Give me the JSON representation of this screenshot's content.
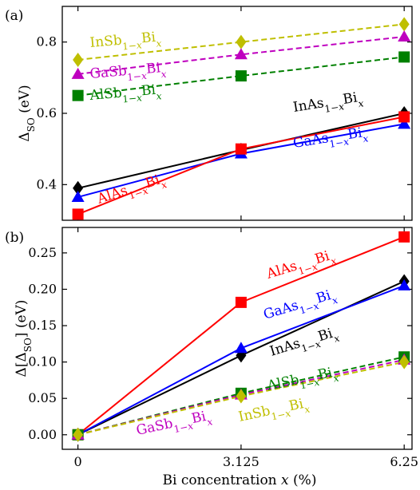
{
  "chart_data": [
    {
      "type": "line",
      "panel_label": "(a)",
      "ylabel": "Δ_SO (eV)",
      "ylim": [
        0.3,
        0.9
      ],
      "yticks": [
        0.4,
        0.6,
        0.8
      ],
      "ytick_labels": [
        "0.4",
        "0.6",
        "0.8"
      ],
      "xlim": [
        -0.3,
        6.4
      ],
      "xticks": [
        0,
        3.125,
        6.25
      ],
      "grid": false,
      "series": [
        {
          "name": "InSb1−xBix",
          "color": "#bfbf00",
          "marker": "diamond",
          "dashed": true,
          "x": [
            0,
            3.125,
            6.25
          ],
          "y": [
            0.75,
            0.8,
            0.85
          ]
        },
        {
          "name": "GaSb1−xBix",
          "color": "#bf00bf",
          "marker": "triangle",
          "dashed": true,
          "x": [
            0,
            3.125,
            6.25
          ],
          "y": [
            0.71,
            0.765,
            0.815
          ]
        },
        {
          "name": "AlSb1−xBix",
          "color": "#008000",
          "marker": "square",
          "dashed": true,
          "x": [
            0,
            3.125,
            6.25
          ],
          "y": [
            0.65,
            0.705,
            0.758
          ]
        },
        {
          "name": "InAs1−xBix",
          "color": "#000000",
          "marker": "diamond",
          "dashed": false,
          "x": [
            0,
            3.125,
            6.25
          ],
          "y": [
            0.39,
            0.497,
            0.6
          ]
        },
        {
          "name": "GaAs1−xBix",
          "color": "#0000ff",
          "marker": "triangle",
          "dashed": false,
          "x": [
            0,
            3.125,
            6.25
          ],
          "y": [
            0.365,
            0.487,
            0.57
          ]
        },
        {
          "name": "AlAs1−xBix",
          "color": "#ff0000",
          "marker": "square",
          "dashed": false,
          "x": [
            0,
            3.125,
            6.25
          ],
          "y": [
            0.317,
            0.5,
            0.59
          ]
        }
      ]
    },
    {
      "type": "line",
      "panel_label": "(b)",
      "ylabel": "Δ[Δ_SO] (eV)",
      "xlabel": "Bi concentration x (%)",
      "ylim": [
        -0.02,
        0.285
      ],
      "yticks": [
        0.0,
        0.05,
        0.1,
        0.15,
        0.2,
        0.25
      ],
      "ytick_labels": [
        "0.00",
        "0.05",
        "0.10",
        "0.15",
        "0.20",
        "0.25"
      ],
      "xlim": [
        -0.3,
        6.4
      ],
      "xticks": [
        0,
        3.125,
        6.25
      ],
      "xtick_labels": [
        "0",
        "3.125",
        "6.25"
      ],
      "grid": false,
      "series": [
        {
          "name": "AlAs1−xBix",
          "color": "#ff0000",
          "marker": "square",
          "dashed": false,
          "x": [
            0,
            3.125,
            6.25
          ],
          "y": [
            0.0,
            0.182,
            0.272
          ]
        },
        {
          "name": "InAs1−xBix",
          "color": "#000000",
          "marker": "diamond",
          "dashed": false,
          "x": [
            0,
            3.125,
            6.25
          ],
          "y": [
            0.0,
            0.109,
            0.211
          ]
        },
        {
          "name": "GaAs1−xBix",
          "color": "#0000ff",
          "marker": "triangle",
          "dashed": false,
          "x": [
            0,
            3.125,
            6.25
          ],
          "y": [
            0.0,
            0.119,
            0.205
          ]
        },
        {
          "name": "AlSb1−xBix",
          "color": "#008000",
          "marker": "square",
          "dashed": true,
          "x": [
            0,
            3.125,
            6.25
          ],
          "y": [
            0.0,
            0.057,
            0.107
          ]
        },
        {
          "name": "GaSb1−xBix",
          "color": "#bf00bf",
          "marker": "triangle",
          "dashed": true,
          "x": [
            0,
            3.125,
            6.25
          ],
          "y": [
            0.0,
            0.055,
            0.103
          ]
        },
        {
          "name": "InSb1−xBix",
          "color": "#bfbf00",
          "marker": "diamond",
          "dashed": true,
          "x": [
            0,
            3.125,
            6.25
          ],
          "y": [
            0.0,
            0.053,
            0.1
          ]
        }
      ]
    }
  ]
}
